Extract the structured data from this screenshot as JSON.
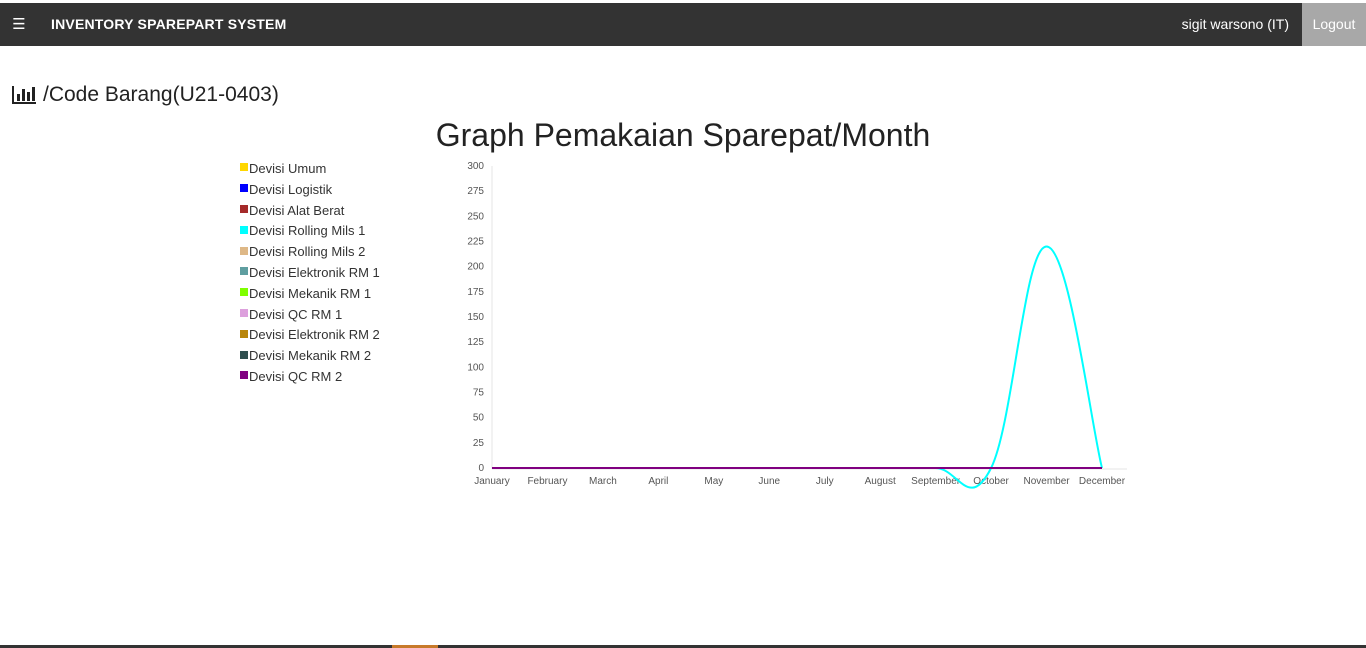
{
  "navbar": {
    "menu_icon": "☰",
    "brand": "INVENTORY SPAREPART SYSTEM",
    "user": "sigit warsono (IT)",
    "logout_label": "Logout"
  },
  "page": {
    "heading": "/Code Barang(U21-0403)",
    "heading_icon": "bar-chart-icon"
  },
  "chart_data": {
    "type": "line",
    "title": "Graph Pemakaian Sparepat/Month",
    "categories": [
      "January",
      "February",
      "March",
      "April",
      "May",
      "June",
      "July",
      "August",
      "September",
      "October",
      "November",
      "December"
    ],
    "ylim": [
      0,
      300
    ],
    "yticks": [
      0,
      25,
      50,
      75,
      100,
      125,
      150,
      175,
      200,
      225,
      250,
      275,
      300
    ],
    "grid": false,
    "legend_position": "left",
    "series": [
      {
        "name": "Devisi Umum",
        "color": "#ffd700",
        "values": [
          0,
          0,
          0,
          0,
          0,
          0,
          0,
          0,
          0,
          0,
          0,
          0
        ]
      },
      {
        "name": "Devisi Logistik",
        "color": "#0000ff",
        "values": [
          0,
          0,
          0,
          0,
          0,
          0,
          0,
          0,
          0,
          0,
          0,
          0
        ]
      },
      {
        "name": "Devisi Alat Berat",
        "color": "#a52a2a",
        "values": [
          0,
          0,
          0,
          0,
          0,
          0,
          0,
          0,
          0,
          0,
          0,
          0
        ]
      },
      {
        "name": "Devisi Rolling Mils 1",
        "color": "#00ffff",
        "values": [
          0,
          0,
          0,
          0,
          0,
          0,
          0,
          0,
          0,
          0,
          220,
          0
        ]
      },
      {
        "name": "Devisi Rolling Mils 2",
        "color": "#deb887",
        "values": [
          0,
          0,
          0,
          0,
          0,
          0,
          0,
          0,
          0,
          0,
          0,
          0
        ]
      },
      {
        "name": "Devisi Elektronik RM 1",
        "color": "#5f9ea0",
        "values": [
          0,
          0,
          0,
          0,
          0,
          0,
          0,
          0,
          0,
          0,
          0,
          0
        ]
      },
      {
        "name": "Devisi Mekanik RM 1",
        "color": "#7fff00",
        "values": [
          0,
          0,
          0,
          0,
          0,
          0,
          0,
          0,
          0,
          0,
          0,
          0
        ]
      },
      {
        "name": "Devisi QC RM 1",
        "color": "#dda0dd",
        "values": [
          0,
          0,
          0,
          0,
          0,
          0,
          0,
          0,
          0,
          0,
          0,
          0
        ]
      },
      {
        "name": "Devisi Elektronik RM 2",
        "color": "#b8860b",
        "values": [
          0,
          0,
          0,
          0,
          0,
          0,
          0,
          0,
          0,
          0,
          0,
          0
        ]
      },
      {
        "name": "Devisi Mekanik RM 2",
        "color": "#2f4f4f",
        "values": [
          0,
          0,
          0,
          0,
          0,
          0,
          0,
          0,
          0,
          0,
          0,
          0
        ]
      },
      {
        "name": "Devisi QC RM 2",
        "color": "#800080",
        "values": [
          0,
          0,
          0,
          0,
          0,
          0,
          0,
          0,
          0,
          0,
          0,
          0
        ]
      }
    ]
  }
}
